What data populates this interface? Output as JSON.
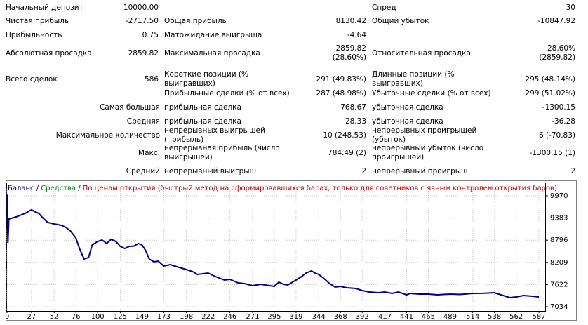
{
  "table": {
    "rows": [
      {
        "l1": "Начальный депозит",
        "v1": "10000.00",
        "l3": "Спред",
        "v3": "30"
      },
      {
        "l1": "Чистая прибыль",
        "v1": "-2717.50",
        "l2": "Общая прибыль",
        "v2": "8130.42",
        "l3": "Общий убыток",
        "v3": "-10847.92"
      },
      {
        "l1": "Прибыльность",
        "v1": "0.75",
        "l2": "Матожидание выигрыша",
        "v2": "-4.64"
      },
      {
        "l1": "Абсолютная просадка",
        "v1": "2859.82",
        "l2": "Максимальная просадка",
        "v2": [
          "2859.82",
          "(28.60%)"
        ],
        "l3": "Относительная просадка",
        "v3": [
          "28.60%",
          "(2859.82)"
        ]
      },
      {
        "l1": "Всего сделок",
        "v1": "586",
        "l2": "Короткие позиции (% выигравших)",
        "v2": "291 (49.83%)",
        "l3": "Длинные позиции (% выигравших)",
        "v3": "295 (48.14%)"
      },
      {
        "l2": "Прибыльные сделки (% от всех)",
        "v2": "287 (48.98%)",
        "l3": "Убыточные сделки (% от всех)",
        "v3": "299 (51.02%)"
      },
      {
        "group": "Самая большая",
        "l2": "прибыльная сделка",
        "v2": "768.67",
        "l3": "убыточная сделка",
        "v3": "-1300.15"
      },
      {
        "group": "Средняя",
        "l2": "прибыльная сделка",
        "v2": "28.33",
        "l3": "убыточная сделка",
        "v3": "-36.28"
      },
      {
        "group": "Максимальное количество",
        "l2": "непрерывных выигрышей (прибыль)",
        "v2": "10 (248.53)",
        "l3": "непрерывных проигрышей (убыток)",
        "v3": "6 (-70.83)"
      },
      {
        "group": "Макс.",
        "l2": "непрерывная прибыль (число выигрышей)",
        "v2": "784.49 (2)",
        "l3": "непрерывный убыток (число проигрышей)",
        "v3": "-1300.15 (1)"
      },
      {
        "group": "Средний",
        "l2": "непрерывный выигрыш",
        "v2": "2",
        "l3": "непрерывный проигрыш",
        "v3": "2"
      }
    ]
  },
  "chart_data": {
    "type": "line",
    "legend_separator": "/",
    "equity_label": "Средства",
    "equity_color": "#008000",
    "model_note": "По ценам открытия (быстрый метод на сформировавшихся барах, только для советников с явным контролем открытия баров)",
    "model_note_color": "#c00000",
    "grid": true,
    "xlim": [
      0,
      587
    ],
    "xticks": [
      0,
      27,
      52,
      76,
      100,
      125,
      149,
      173,
      198,
      222,
      246,
      271,
      295,
      319,
      344,
      368,
      392,
      417,
      441,
      465,
      489,
      514,
      538,
      562,
      587
    ],
    "ylim": [
      6923,
      10323
    ],
    "yticks": [
      7034,
      7622,
      8209,
      8796,
      9383,
      9970
    ],
    "x": [
      0,
      1,
      2,
      10,
      20,
      27,
      30,
      35,
      40,
      45,
      52,
      60,
      65,
      70,
      76,
      80,
      85,
      90,
      94,
      100,
      105,
      110,
      115,
      120,
      125,
      130,
      135,
      140,
      145,
      149,
      153,
      157,
      162,
      167,
      173,
      180,
      185,
      190,
      198,
      205,
      210,
      222,
      230,
      240,
      246,
      255,
      262,
      271,
      280,
      290,
      295,
      300,
      305,
      310,
      319,
      325,
      330,
      336,
      340,
      344,
      350,
      356,
      362,
      368,
      375,
      385,
      392,
      400,
      410,
      417,
      425,
      432,
      441,
      445,
      455,
      465,
      475,
      489,
      500,
      514,
      525,
      538,
      545,
      555,
      562,
      570,
      580,
      587
    ],
    "series": [
      {
        "name": "Баланс",
        "color": "#000080",
        "values": [
          10000,
          8725,
          9357,
          9413,
          9505,
          9600,
          9560,
          9505,
          9375,
          9264,
          9227,
          9190,
          9134,
          9041,
          8855,
          8577,
          8298,
          8335,
          8670,
          8762,
          8800,
          8706,
          8818,
          8762,
          8632,
          8577,
          8632,
          8640,
          8706,
          8670,
          8520,
          8298,
          8223,
          8240,
          8112,
          8149,
          8112,
          8075,
          8019,
          7963,
          7889,
          7926,
          7833,
          7740,
          7759,
          7666,
          7647,
          7592,
          7629,
          7592,
          7573,
          7685,
          7629,
          7610,
          7740,
          7833,
          7926,
          7982,
          7926,
          7889,
          7778,
          7647,
          7554,
          7573,
          7536,
          7517,
          7462,
          7424,
          7406,
          7424,
          7387,
          7424,
          7350,
          7387,
          7369,
          7369,
          7350,
          7369,
          7360,
          7387,
          7390,
          7406,
          7350,
          7276,
          7294,
          7331,
          7313,
          7294
        ]
      }
    ]
  }
}
